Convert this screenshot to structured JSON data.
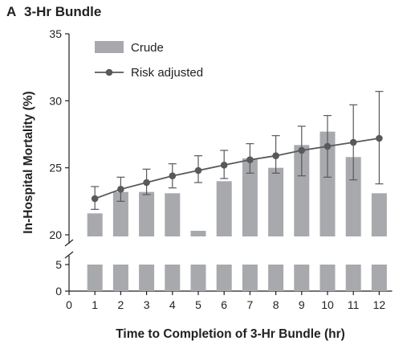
{
  "header": {
    "panel_letter": "A",
    "title": "3-Hr Bundle"
  },
  "chart_data": {
    "type": "bar",
    "title": "3-Hr Bundle",
    "xlabel": "Time to Completion of 3-Hr Bundle (hr)",
    "ylabel": "In-Hospital Mortality (%)",
    "x": [
      1,
      2,
      3,
      4,
      5,
      6,
      7,
      8,
      9,
      10,
      11,
      12
    ],
    "x_ticks": [
      "0",
      "1",
      "2",
      "3",
      "4",
      "5",
      "6",
      "7",
      "8",
      "9",
      "10",
      "11",
      "12"
    ],
    "xlim": [
      0,
      12.5
    ],
    "y_axis_break": {
      "lower_range": [
        0,
        5
      ],
      "upper_range": [
        20,
        35
      ]
    },
    "y_ticks_lower": [
      "0",
      "5"
    ],
    "y_ticks_upper": [
      "20",
      "25",
      "30",
      "35"
    ],
    "series": [
      {
        "name": "Crude",
        "kind": "bar",
        "color": "#a7a9ac",
        "values": [
          21.6,
          23.2,
          23.2,
          23.1,
          20.3,
          24.0,
          25.7,
          25.0,
          26.7,
          27.7,
          25.8,
          23.1
        ]
      },
      {
        "name": "Risk adjusted",
        "kind": "line",
        "color": "#58595b",
        "values": [
          22.7,
          23.4,
          23.9,
          24.4,
          24.8,
          25.2,
          25.6,
          25.9,
          26.3,
          26.6,
          26.9,
          27.2
        ],
        "ci_low": [
          21.9,
          22.5,
          23.0,
          23.5,
          23.9,
          24.2,
          24.6,
          24.6,
          24.4,
          24.3,
          24.1,
          23.8
        ],
        "ci_high": [
          23.6,
          24.3,
          24.9,
          25.3,
          25.9,
          26.3,
          26.8,
          27.4,
          28.1,
          28.9,
          29.7,
          30.7
        ]
      }
    ],
    "legend": {
      "position": "top-left",
      "labels": [
        "Crude",
        "Risk adjusted"
      ]
    },
    "grid": false
  }
}
